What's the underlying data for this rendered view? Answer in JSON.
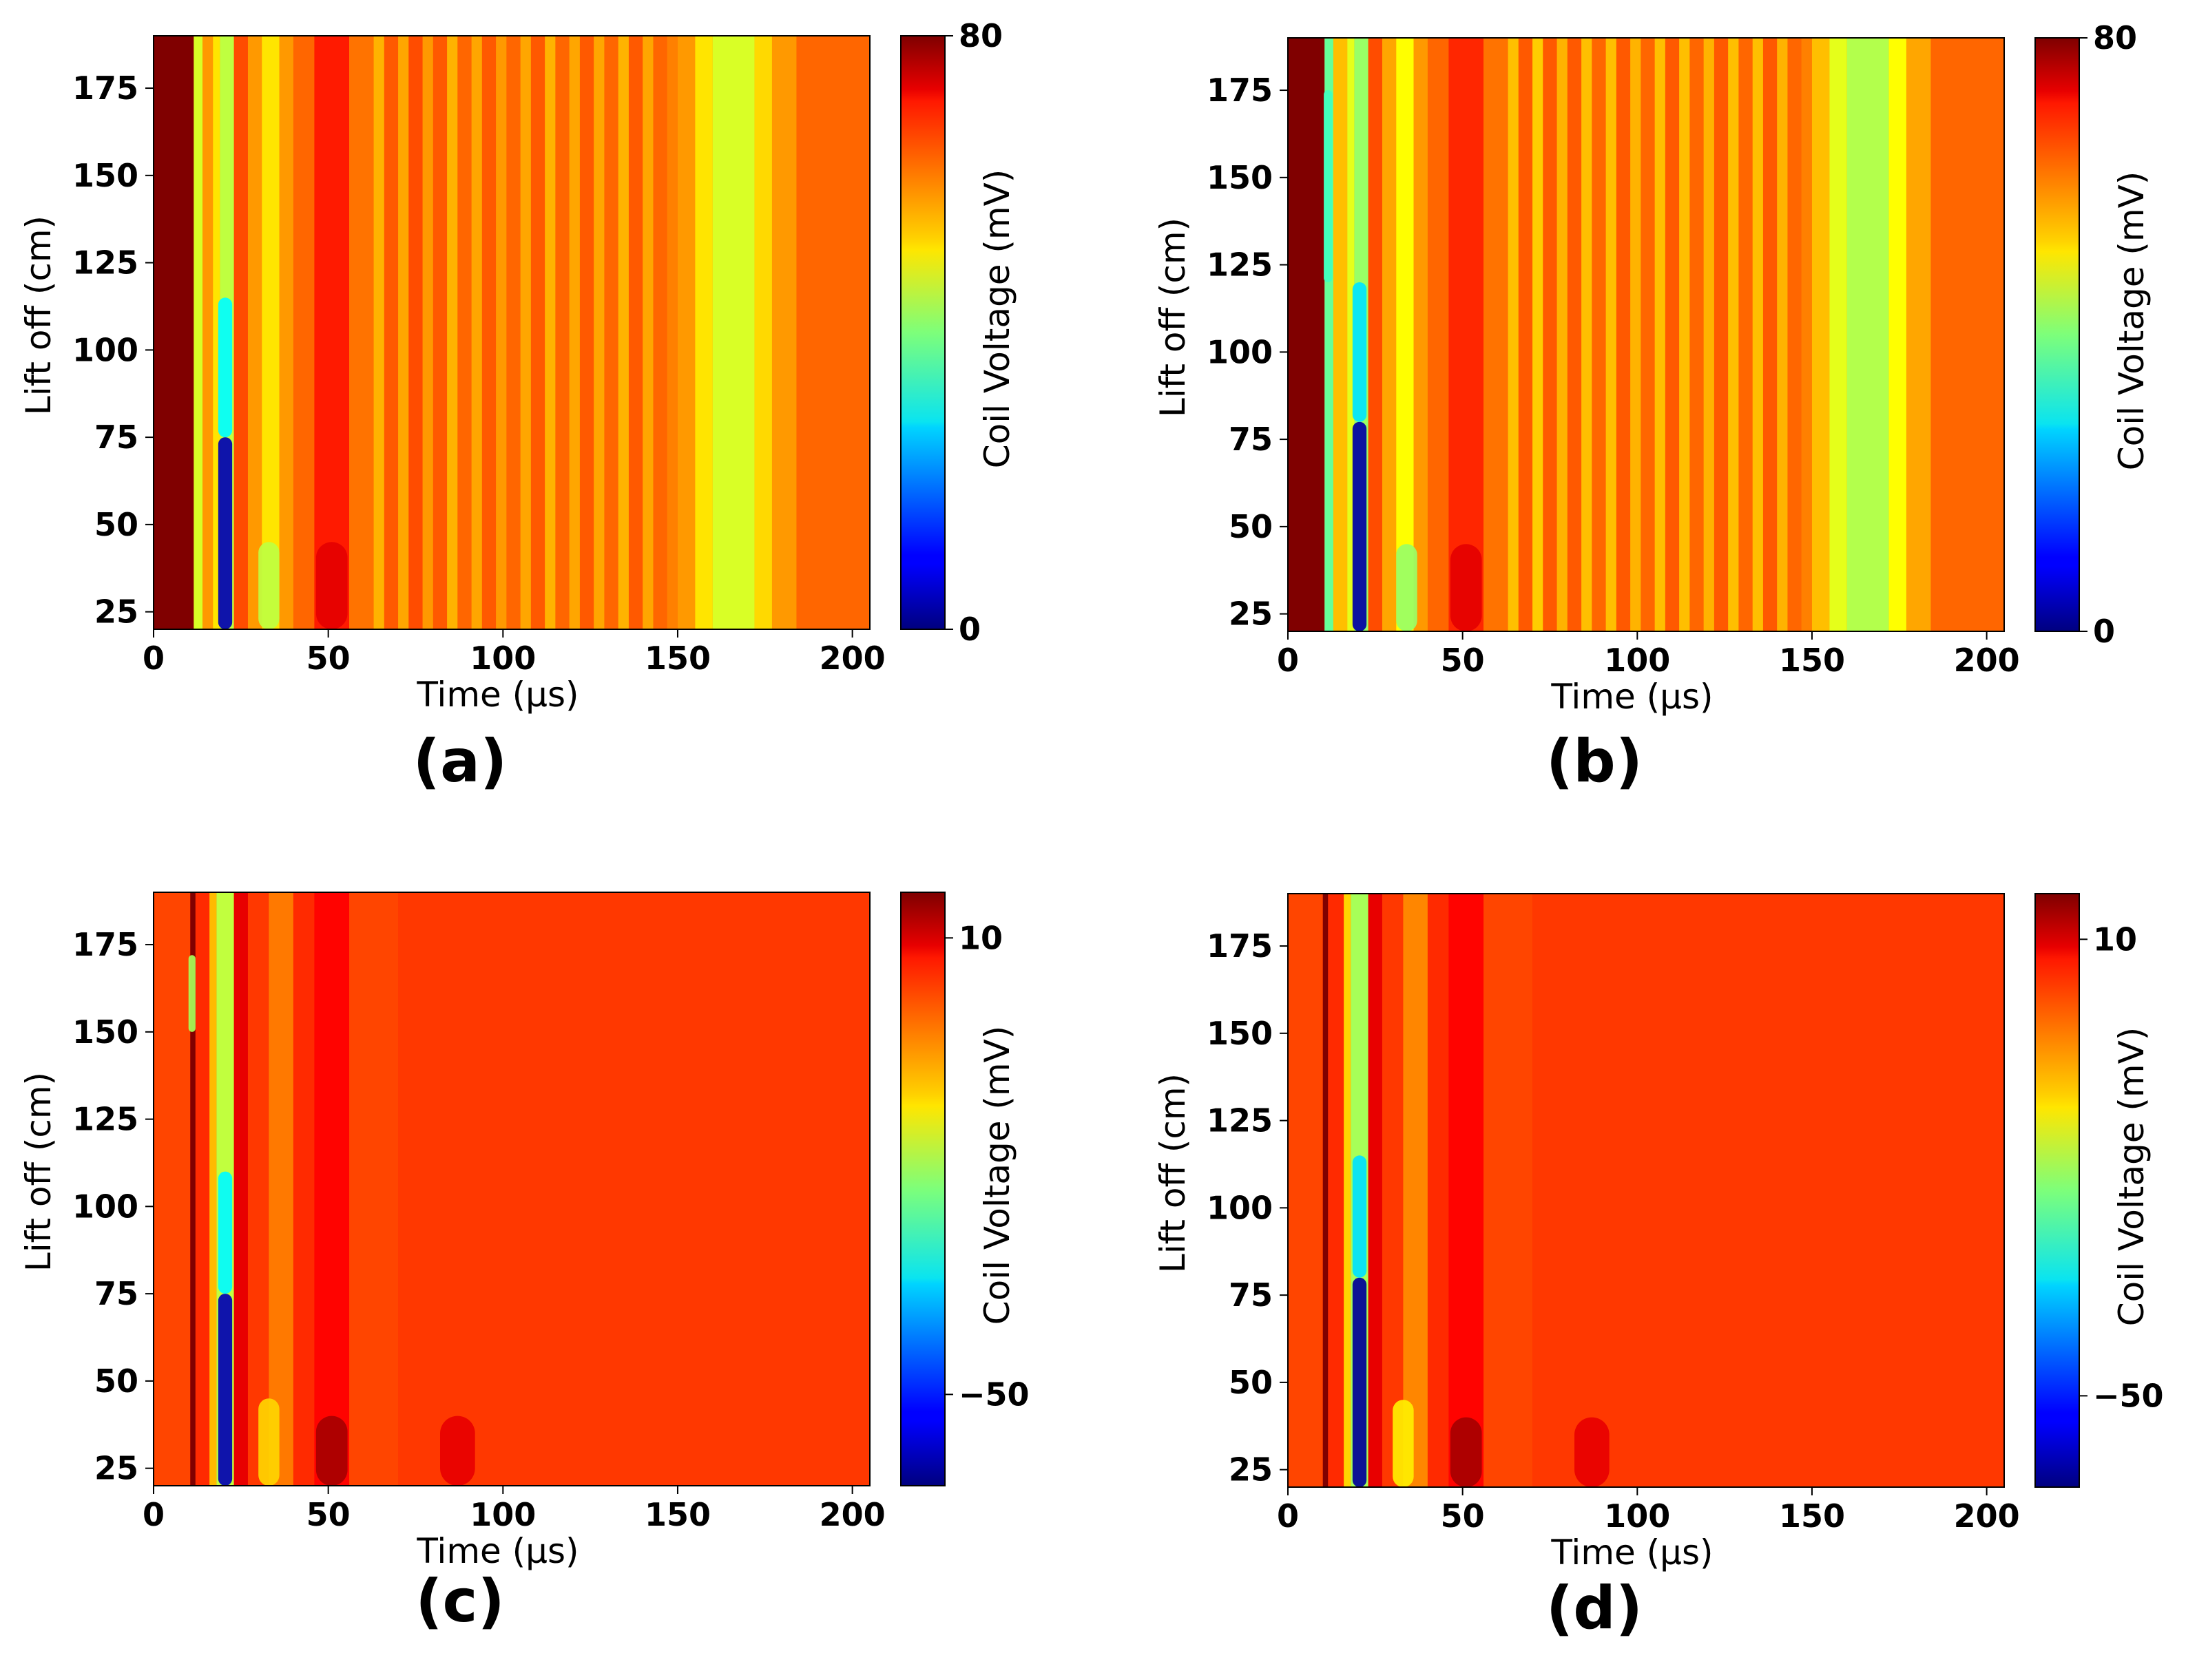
{
  "chart_data": [
    {
      "type": "heatmap",
      "caption": "(a)",
      "xlabel": "Time (μs)",
      "ylabel": "Lift off (cm)",
      "colorbar_label": "Coil Voltage (mV)",
      "xlim": [
        0,
        205
      ],
      "ylim": [
        20,
        190
      ],
      "xticks": [
        0,
        50,
        100,
        150,
        200
      ],
      "yticks": [
        25,
        50,
        75,
        100,
        125,
        150,
        175
      ],
      "clim": [
        0,
        80
      ],
      "colorbar_ticks": [
        0,
        80
      ],
      "colorbar_tick_labels": [
        "0",
        "80"
      ],
      "colormap": "jet",
      "background_value": 60,
      "bands": [
        {
          "t0": 0,
          "t1": 11.5,
          "value": 85
        },
        {
          "t0": 11.5,
          "t1": 14,
          "value": 47
        },
        {
          "t0": 14,
          "t1": 17,
          "value": 58
        },
        {
          "t0": 17,
          "t1": 19,
          "value": 52
        },
        {
          "t0": 19,
          "t1": 23,
          "value": 45
        },
        {
          "t0": 23,
          "t1": 27,
          "value": 64
        },
        {
          "t0": 27,
          "t1": 31,
          "value": 58
        },
        {
          "t0": 31,
          "t1": 36,
          "value": 52
        },
        {
          "t0": 36,
          "t1": 40,
          "value": 58
        },
        {
          "t0": 40,
          "t1": 46,
          "value": 62
        },
        {
          "t0": 46,
          "t1": 56,
          "value": 68
        },
        {
          "t0": 56,
          "t1": 63,
          "value": 61
        },
        {
          "t0": 63,
          "t1": 66,
          "value": 56
        },
        {
          "t0": 66,
          "t1": 70,
          "value": 63
        },
        {
          "t0": 70,
          "t1": 73,
          "value": 57
        },
        {
          "t0": 73,
          "t1": 77,
          "value": 64
        },
        {
          "t0": 77,
          "t1": 80,
          "value": 58
        },
        {
          "t0": 80,
          "t1": 84,
          "value": 63
        },
        {
          "t0": 84,
          "t1": 87,
          "value": 56
        },
        {
          "t0": 87,
          "t1": 91,
          "value": 62
        },
        {
          "t0": 91,
          "t1": 94,
          "value": 57
        },
        {
          "t0": 94,
          "t1": 98,
          "value": 63
        },
        {
          "t0": 98,
          "t1": 101,
          "value": 58
        },
        {
          "t0": 101,
          "t1": 105,
          "value": 62
        },
        {
          "t0": 105,
          "t1": 108,
          "value": 57
        },
        {
          "t0": 108,
          "t1": 112,
          "value": 63
        },
        {
          "t0": 112,
          "t1": 115,
          "value": 56
        },
        {
          "t0": 115,
          "t1": 119,
          "value": 62
        },
        {
          "t0": 119,
          "t1": 122,
          "value": 57
        },
        {
          "t0": 122,
          "t1": 126,
          "value": 63
        },
        {
          "t0": 126,
          "t1": 129,
          "value": 57
        },
        {
          "t0": 129,
          "t1": 133,
          "value": 62
        },
        {
          "t0": 133,
          "t1": 136,
          "value": 56
        },
        {
          "t0": 136,
          "t1": 140,
          "value": 63
        },
        {
          "t0": 140,
          "t1": 143,
          "value": 57
        },
        {
          "t0": 143,
          "t1": 147,
          "value": 62
        },
        {
          "t0": 147,
          "t1": 150,
          "value": 60
        },
        {
          "t0": 150,
          "t1": 155,
          "value": 58
        },
        {
          "t0": 155,
          "t1": 160,
          "value": 52
        },
        {
          "t0": 160,
          "t1": 172,
          "value": 47
        },
        {
          "t0": 172,
          "t1": 177,
          "value": 53
        },
        {
          "t0": 177,
          "t1": 184,
          "value": 58
        },
        {
          "t0": 184,
          "t1": 205,
          "value": 62
        }
      ],
      "features": [
        {
          "t": 20.5,
          "lift_min": 20,
          "lift_max": 75,
          "width": 4,
          "value": 4
        },
        {
          "t": 20.5,
          "lift_min": 75,
          "lift_max": 115,
          "width": 4,
          "value": 30
        },
        {
          "t": 33,
          "lift_min": 20,
          "lift_max": 45,
          "width": 6,
          "value": 45
        },
        {
          "t": 51,
          "lift_min": 20,
          "lift_max": 45,
          "width": 9,
          "value": 72
        }
      ]
    },
    {
      "type": "heatmap",
      "caption": "(b)",
      "xlabel": "Time (μs)",
      "ylabel": "Lift off (cm)",
      "colorbar_label": "Coil Voltage (mV)",
      "xlim": [
        0,
        205
      ],
      "ylim": [
        20,
        190
      ],
      "xticks": [
        0,
        50,
        100,
        150,
        200
      ],
      "yticks": [
        25,
        50,
        75,
        100,
        125,
        150,
        175
      ],
      "clim": [
        0,
        80
      ],
      "colorbar_ticks": [
        0,
        80
      ],
      "colorbar_tick_labels": [
        "0",
        "80"
      ],
      "colormap": "jet",
      "background_value": 60,
      "bands": [
        {
          "t0": 0,
          "t1": 10.5,
          "value": 85
        },
        {
          "t0": 10.5,
          "t1": 13,
          "value": 38
        },
        {
          "t0": 13,
          "t1": 17,
          "value": 55
        },
        {
          "t0": 17,
          "t1": 19,
          "value": 48
        },
        {
          "t0": 19,
          "t1": 23,
          "value": 42
        },
        {
          "t0": 23,
          "t1": 27,
          "value": 64
        },
        {
          "t0": 27,
          "t1": 31,
          "value": 57
        },
        {
          "t0": 31,
          "t1": 36,
          "value": 50
        },
        {
          "t0": 36,
          "t1": 40,
          "value": 58
        },
        {
          "t0": 40,
          "t1": 46,
          "value": 62
        },
        {
          "t0": 46,
          "t1": 56,
          "value": 67
        },
        {
          "t0": 56,
          "t1": 63,
          "value": 61
        },
        {
          "t0": 63,
          "t1": 66,
          "value": 55
        },
        {
          "t0": 66,
          "t1": 70,
          "value": 63
        },
        {
          "t0": 70,
          "t1": 73,
          "value": 54
        },
        {
          "t0": 73,
          "t1": 77,
          "value": 63
        },
        {
          "t0": 77,
          "t1": 80,
          "value": 56
        },
        {
          "t0": 80,
          "t1": 84,
          "value": 63
        },
        {
          "t0": 84,
          "t1": 87,
          "value": 55
        },
        {
          "t0": 87,
          "t1": 91,
          "value": 62
        },
        {
          "t0": 91,
          "t1": 94,
          "value": 55
        },
        {
          "t0": 94,
          "t1": 98,
          "value": 63
        },
        {
          "t0": 98,
          "t1": 101,
          "value": 56
        },
        {
          "t0": 101,
          "t1": 105,
          "value": 62
        },
        {
          "t0": 105,
          "t1": 108,
          "value": 55
        },
        {
          "t0": 108,
          "t1": 112,
          "value": 63
        },
        {
          "t0": 112,
          "t1": 115,
          "value": 55
        },
        {
          "t0": 115,
          "t1": 119,
          "value": 62
        },
        {
          "t0": 119,
          "t1": 122,
          "value": 56
        },
        {
          "t0": 122,
          "t1": 126,
          "value": 63
        },
        {
          "t0": 126,
          "t1": 129,
          "value": 55
        },
        {
          "t0": 129,
          "t1": 133,
          "value": 62
        },
        {
          "t0": 133,
          "t1": 136,
          "value": 55
        },
        {
          "t0": 136,
          "t1": 140,
          "value": 63
        },
        {
          "t0": 140,
          "t1": 143,
          "value": 56
        },
        {
          "t0": 143,
          "t1": 147,
          "value": 62
        },
        {
          "t0": 147,
          "t1": 150,
          "value": 60
        },
        {
          "t0": 150,
          "t1": 155,
          "value": 55
        },
        {
          "t0": 155,
          "t1": 160,
          "value": 48
        },
        {
          "t0": 160,
          "t1": 172,
          "value": 44
        },
        {
          "t0": 172,
          "t1": 177,
          "value": 50
        },
        {
          "t0": 177,
          "t1": 184,
          "value": 57
        },
        {
          "t0": 184,
          "t1": 205,
          "value": 62
        }
      ],
      "features": [
        {
          "t": 20.5,
          "lift_min": 20,
          "lift_max": 80,
          "width": 4,
          "value": 3
        },
        {
          "t": 20.5,
          "lift_min": 80,
          "lift_max": 120,
          "width": 4,
          "value": 28
        },
        {
          "t": 11.5,
          "lift_min": 120,
          "lift_max": 175,
          "width": 2.5,
          "value": 35
        },
        {
          "t": 34,
          "lift_min": 20,
          "lift_max": 45,
          "width": 6,
          "value": 42
        },
        {
          "t": 51,
          "lift_min": 20,
          "lift_max": 45,
          "width": 9,
          "value": 72
        }
      ]
    },
    {
      "type": "heatmap",
      "caption": "(c)",
      "xlabel": "Time (μs)",
      "ylabel": "Lift off (cm)",
      "colorbar_label": "Coil Voltage (mV)",
      "xlim": [
        0,
        205
      ],
      "ylim": [
        20,
        190
      ],
      "xticks": [
        0,
        50,
        100,
        150,
        200
      ],
      "yticks": [
        25,
        50,
        75,
        100,
        125,
        150,
        175
      ],
      "clim": [
        -62,
        16
      ],
      "colorbar_ticks": [
        -50,
        10
      ],
      "colorbar_tick_labels": [
        "−50",
        "10"
      ],
      "colormap": "jet",
      "background_value": 2,
      "bands": [
        {
          "t0": 0,
          "t1": 10.5,
          "value": 1
        },
        {
          "t0": 10.5,
          "t1": 12,
          "value": 16
        },
        {
          "t0": 12,
          "t1": 16,
          "value": 3
        },
        {
          "t0": 16,
          "t1": 18,
          "value": -8
        },
        {
          "t0": 18,
          "t1": 23,
          "value": -18
        },
        {
          "t0": 23,
          "t1": 27,
          "value": 8
        },
        {
          "t0": 27,
          "t1": 33,
          "value": 2
        },
        {
          "t0": 33,
          "t1": 40,
          "value": -3
        },
        {
          "t0": 40,
          "t1": 46,
          "value": 3
        },
        {
          "t0": 46,
          "t1": 56,
          "value": 6
        },
        {
          "t0": 56,
          "t1": 70,
          "value": 1
        },
        {
          "t0": 70,
          "t1": 205,
          "value": 2
        }
      ],
      "features": [
        {
          "t": 20.5,
          "lift_min": 20,
          "lift_max": 75,
          "width": 4,
          "value": -58
        },
        {
          "t": 20.5,
          "lift_min": 75,
          "lift_max": 110,
          "width": 4,
          "value": -33
        },
        {
          "t": 11,
          "lift_min": 150,
          "lift_max": 172,
          "width": 2,
          "value": -20
        },
        {
          "t": 33,
          "lift_min": 20,
          "lift_max": 45,
          "width": 6,
          "value": -10
        },
        {
          "t": 51,
          "lift_min": 20,
          "lift_max": 40,
          "width": 9,
          "value": 13
        },
        {
          "t": 87,
          "lift_min": 20,
          "lift_max": 40,
          "width": 10,
          "value": 8
        }
      ]
    },
    {
      "type": "heatmap",
      "caption": "(d)",
      "xlabel": "Time (μs)",
      "ylabel": "Lift off (cm)",
      "colorbar_label": "Coil Voltage (mV)",
      "xlim": [
        0,
        205
      ],
      "ylim": [
        20,
        190
      ],
      "xticks": [
        0,
        50,
        100,
        150,
        200
      ],
      "yticks": [
        25,
        50,
        75,
        100,
        125,
        150,
        175
      ],
      "clim": [
        -62,
        16
      ],
      "colorbar_ticks": [
        -50,
        10
      ],
      "colorbar_tick_labels": [
        "−50",
        "10"
      ],
      "colormap": "jet",
      "background_value": 2,
      "bands": [
        {
          "t0": 0,
          "t1": 10,
          "value": 1
        },
        {
          "t0": 10,
          "t1": 11.5,
          "value": 16
        },
        {
          "t0": 11.5,
          "t1": 16,
          "value": 3
        },
        {
          "t0": 16,
          "t1": 18,
          "value": -10
        },
        {
          "t0": 18,
          "t1": 23,
          "value": -20
        },
        {
          "t0": 23,
          "t1": 27,
          "value": 8
        },
        {
          "t0": 27,
          "t1": 33,
          "value": 2
        },
        {
          "t0": 33,
          "t1": 40,
          "value": -4
        },
        {
          "t0": 40,
          "t1": 46,
          "value": 3
        },
        {
          "t0": 46,
          "t1": 56,
          "value": 6
        },
        {
          "t0": 56,
          "t1": 70,
          "value": 1
        },
        {
          "t0": 70,
          "t1": 205,
          "value": 2
        }
      ],
      "features": [
        {
          "t": 20.5,
          "lift_min": 20,
          "lift_max": 80,
          "width": 4,
          "value": -60
        },
        {
          "t": 20.5,
          "lift_min": 80,
          "lift_max": 115,
          "width": 4,
          "value": -35
        },
        {
          "t": 33,
          "lift_min": 20,
          "lift_max": 45,
          "width": 6,
          "value": -12
        },
        {
          "t": 51,
          "lift_min": 20,
          "lift_max": 40,
          "width": 9,
          "value": 13
        },
        {
          "t": 87,
          "lift_min": 20,
          "lift_max": 40,
          "width": 10,
          "value": 8
        }
      ]
    }
  ]
}
